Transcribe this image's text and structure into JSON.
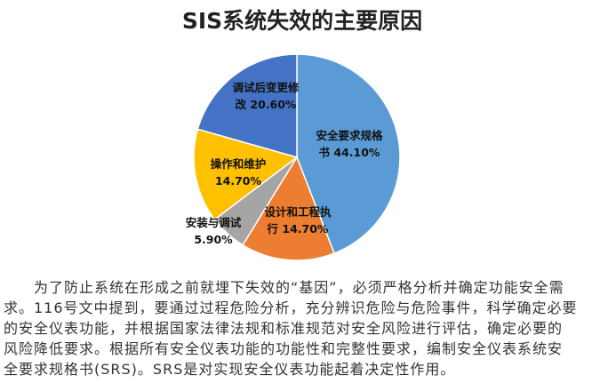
{
  "chart_data": {
    "type": "pie",
    "title": "SIS系统失效的主要原因",
    "slices": [
      {
        "label_lines": [
          "安全要求规格",
          "书 44.10%"
        ],
        "label": "安全要求规格书",
        "value": 44.1,
        "color": "#5b9bd5"
      },
      {
        "label_lines": [
          "设计和工程执",
          "行 14.70%"
        ],
        "label": "设计和工程执行",
        "value": 14.7,
        "color": "#ed7d31"
      },
      {
        "label_lines": [
          "安装与调试",
          "5.90%"
        ],
        "label": "安装与调试",
        "value": 5.9,
        "color": "#a5a5a5"
      },
      {
        "label_lines": [
          "操作和维护",
          "14.70%"
        ],
        "label": "操作和维护",
        "value": 14.7,
        "color": "#ffc000"
      },
      {
        "label_lines": [
          "调试后变更修",
          "改 20.60%"
        ],
        "label": "调试后变更修改",
        "value": 20.6,
        "color": "#4472c4"
      }
    ],
    "start_angle": "12 o'clock, clockwise",
    "legend": "none, data labels inside slices"
  },
  "paragraph": {
    "lines": [
      "　　为了防止系统在形成之前就埋下失效的“基因”，必须严格分析并确定功能安全需",
      "求。116号文中提到，要通过过程危险分析，充分辨识危险与危险事件，科学确定必要",
      "的安全仪表功能，并根据国家法律法规和标准规范对安全风险进行评估，确定必要的",
      "风险降低要求。根据所有安全仪表功能的功能性和完整性要求，编制安全仪表系统安",
      "全要求规格书(SRS)。SRS是对实现安全仪表功能起着决定性作用。"
    ]
  }
}
